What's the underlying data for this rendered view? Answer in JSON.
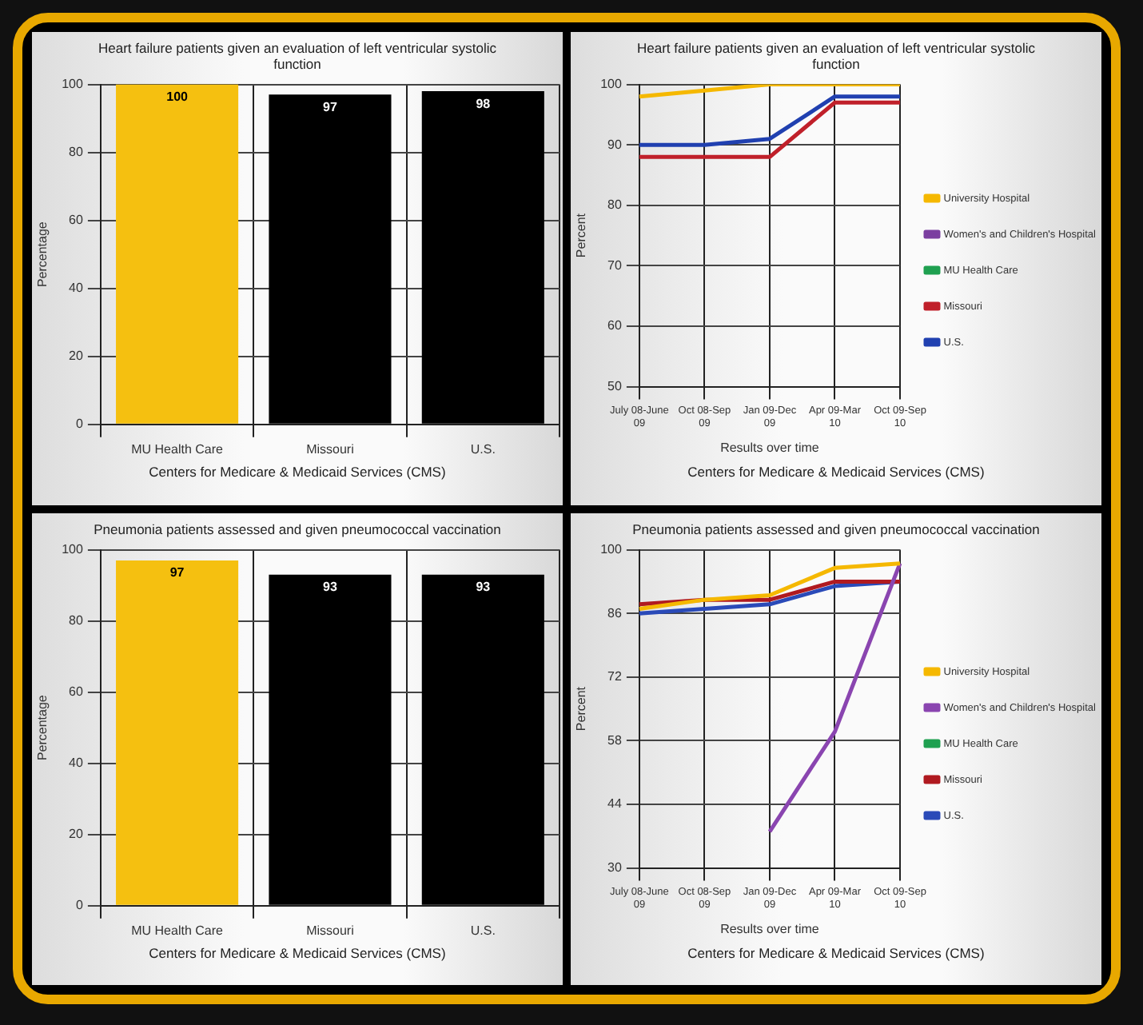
{
  "chart_data": [
    {
      "type": "bar",
      "title": "Heart failure patients given an evaluation of left ventricular systolic function",
      "ylabel": "Percentage",
      "categories": [
        "MU Health Care",
        "Missouri",
        "U.S."
      ],
      "values": [
        100,
        97,
        98
      ],
      "colors": [
        "#f5c010",
        "#000000",
        "#000000"
      ],
      "data_labels": true,
      "ylim": [
        0,
        100
      ],
      "yticks": [
        0,
        20,
        40,
        60,
        80,
        100
      ],
      "grid": true,
      "annotations": [
        "Centers for Medicare & Medicaid Services (CMS)"
      ]
    },
    {
      "type": "line",
      "title": "Heart failure patients given an evaluation of left ventricular systolic function",
      "xlabel": "Results over time",
      "ylabel": "Percent",
      "categories": [
        "July 08-June 09",
        "Oct 08-Sep 09",
        "Jan 09-Dec 09",
        "Apr 09-Mar 10",
        "Oct 09-Sep 10"
      ],
      "series": [
        {
          "name": "University Hospital",
          "color": "#f5b800",
          "values": [
            98,
            99,
            100,
            100,
            100
          ]
        },
        {
          "name": "Women's and Children's Hospital",
          "color": "#7b3fa0",
          "values": [
            null,
            null,
            null,
            null,
            null
          ]
        },
        {
          "name": "MU Health Care",
          "color": "#1fa050",
          "values": [
            null,
            null,
            null,
            null,
            null
          ]
        },
        {
          "name": "Missouri",
          "color": "#c0202a",
          "values": [
            88,
            88,
            88,
            97,
            97
          ]
        },
        {
          "name": "U.S.",
          "color": "#2040b0",
          "values": [
            90,
            90,
            91,
            98,
            98
          ]
        }
      ],
      "ylim": [
        50,
        100
      ],
      "yticks": [
        50,
        60,
        70,
        80,
        90,
        100
      ],
      "grid": true,
      "legend": "right",
      "annotations": [
        "Centers for Medicare & Medicaid Services (CMS)"
      ]
    },
    {
      "type": "bar",
      "title": "Pneumonia patients assessed and given pneumococcal vaccination",
      "ylabel": "Percentage",
      "categories": [
        "MU Health Care",
        "Missouri",
        "U.S."
      ],
      "values": [
        97,
        93,
        93
      ],
      "colors": [
        "#f5c010",
        "#000000",
        "#000000"
      ],
      "data_labels": true,
      "ylim": [
        0,
        100
      ],
      "yticks": [
        0,
        20,
        40,
        60,
        80,
        100
      ],
      "grid": true,
      "annotations": [
        "Centers for Medicare & Medicaid Services (CMS)"
      ]
    },
    {
      "type": "line",
      "title": "Pneumonia patients assessed and given pneumococcal vaccination",
      "xlabel": "Results over time",
      "ylabel": "Percent",
      "categories": [
        "July 08-June 09",
        "Oct 08-Sep 09",
        "Jan 09-Dec 09",
        "Apr 09-Mar 10",
        "Oct 09-Sep 10"
      ],
      "series": [
        {
          "name": "University Hospital",
          "color": "#f5b800",
          "values": [
            87,
            89,
            90,
            96,
            97
          ]
        },
        {
          "name": "Women's and Children's Hospital",
          "color": "#8a45b0",
          "values": [
            null,
            null,
            38,
            60,
            97
          ]
        },
        {
          "name": "MU Health Care",
          "color": "#1fa050",
          "values": [
            null,
            null,
            null,
            null,
            null
          ]
        },
        {
          "name": "Missouri",
          "color": "#b01a20",
          "values": [
            88,
            89,
            89,
            93,
            93
          ]
        },
        {
          "name": "U.S.",
          "color": "#2a4ab8",
          "values": [
            86,
            87,
            88,
            92,
            93
          ]
        }
      ],
      "ylim": [
        30,
        100
      ],
      "yticks": [
        30,
        44,
        58,
        72,
        86,
        100
      ],
      "grid": true,
      "legend": "right",
      "annotations": [
        "Centers for Medicare & Medicaid Services (CMS)"
      ]
    }
  ]
}
